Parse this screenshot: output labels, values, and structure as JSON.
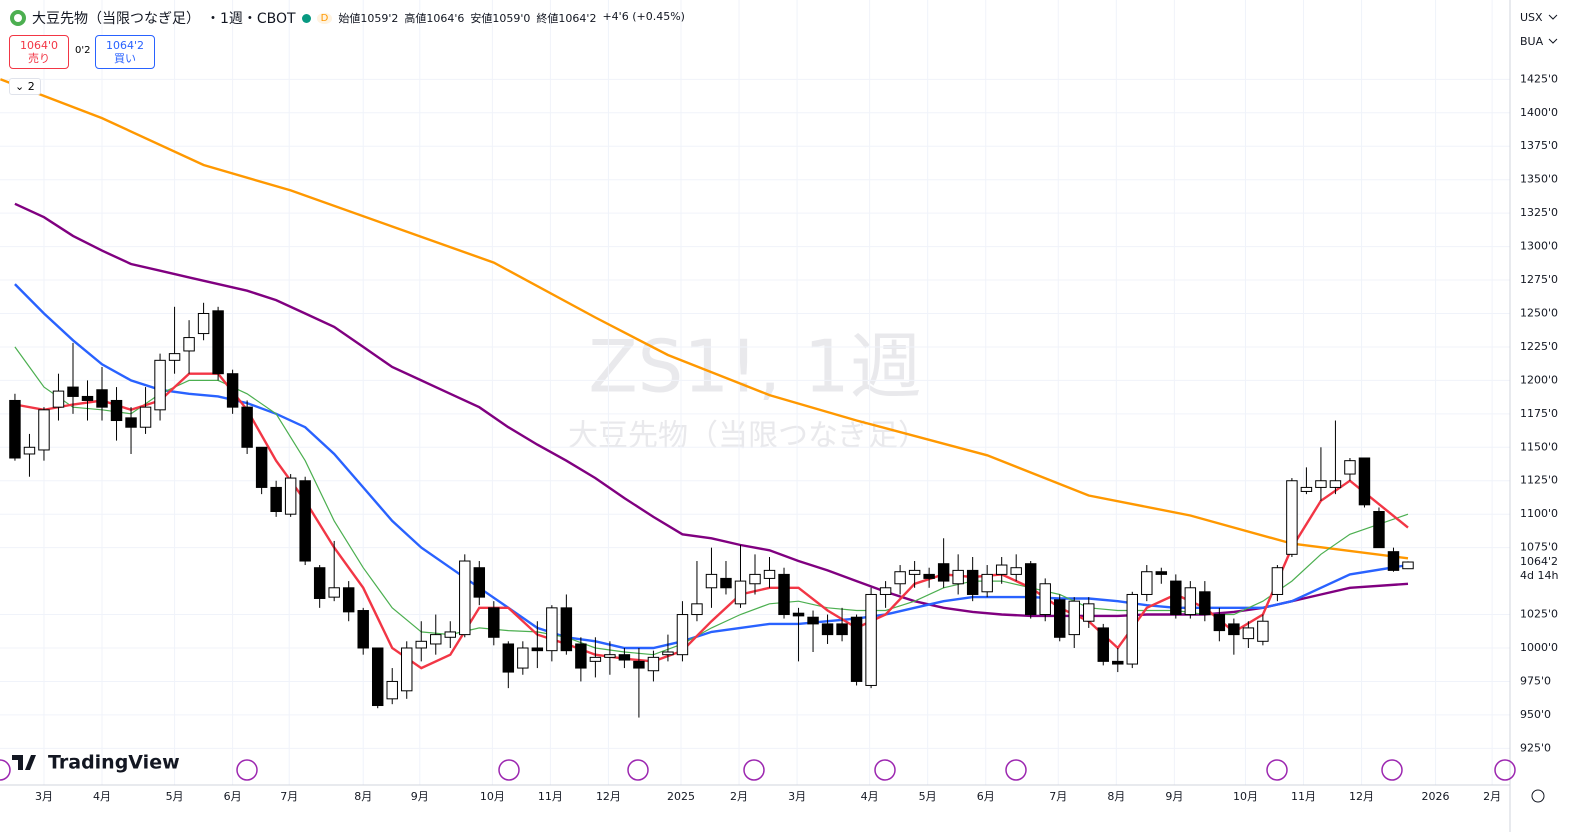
{
  "header": {
    "title": "大豆先物（当限つなぎ足）",
    "subtitle": "・1週・CBOT",
    "flag": "D",
    "open": "始値1059'2",
    "high": "高値1064'6",
    "low": "安値1059'0",
    "close": "終値1064'2",
    "change": "+4'6 (+0.45%)"
  },
  "trade": {
    "sell_price": "1064'0",
    "sell": "売り",
    "spread": "0'2",
    "buy_price": "1064'2",
    "buy": "買い"
  },
  "indicators": "2",
  "watermark": {
    "symbol": "ZS1!, 1週",
    "name": "大豆先物（当限つなぎ足）"
  },
  "right_panel": {
    "currency": "USX",
    "unit": "BUA"
  },
  "logo": "TradingView",
  "chart_data": {
    "type": "candlestick",
    "up_color": "#ffffff",
    "down_color": "#000000",
    "grid": true,
    "open": [
      1185,
      1145,
      1148,
      1180,
      1195,
      1188,
      1193,
      1185,
      1172,
      1165,
      1178,
      1215,
      1222,
      1235,
      1252,
      1205,
      1180,
      1150,
      1120,
      1100,
      1125,
      1060,
      1038,
      1045,
      1028,
      1000,
      962,
      968,
      1000,
      1003,
      1008,
      1010,
      1060,
      1030,
      1003,
      985,
      1000,
      998,
      1030,
      1003,
      990,
      993,
      995,
      990,
      983,
      995,
      995,
      1025,
      1045,
      1052,
      1033,
      1048,
      1052,
      1055,
      1026,
      1023,
      1018,
      1018,
      1023,
      972,
      1040,
      1048,
      1055,
      1055,
      1063,
      1048,
      1058,
      1042,
      1055,
      1055,
      1063,
      1025,
      1036,
      1010,
      1020,
      1015,
      990,
      988,
      1040,
      1057,
      1050,
      1025,
      1042,
      1025,
      1018,
      1007,
      1005,
      1040,
      1070,
      1117,
      1120,
      1120,
      1130,
      1142,
      1102,
      1072,
      1059.25
    ],
    "high": [
      1190,
      1160,
      1180,
      1205,
      1228,
      1200,
      1210,
      1195,
      1180,
      1195,
      1220,
      1255,
      1245,
      1258,
      1255,
      1208,
      1185,
      1150,
      1125,
      1130,
      1128,
      1062,
      1080,
      1050,
      1030,
      1000,
      985,
      1005,
      1020,
      1025,
      1020,
      1070,
      1065,
      1035,
      1005,
      1005,
      1020,
      1032,
      1040,
      1008,
      1008,
      1005,
      1000,
      1000,
      998,
      1010,
      1035,
      1065,
      1075,
      1065,
      1077,
      1070,
      1068,
      1060,
      1030,
      1028,
      1025,
      1030,
      1025,
      1045,
      1050,
      1062,
      1065,
      1060,
      1082,
      1070,
      1068,
      1062,
      1068,
      1070,
      1065,
      1052,
      1040,
      1038,
      1038,
      1018,
      1000,
      1042,
      1062,
      1060,
      1055,
      1050,
      1050,
      1030,
      1022,
      1020,
      1025,
      1062,
      1127,
      1135,
      1150,
      1170,
      1142,
      1142,
      1105,
      1075,
      1064.75
    ],
    "low": [
      1140,
      1128,
      1140,
      1170,
      1175,
      1170,
      1170,
      1155,
      1145,
      1160,
      1170,
      1205,
      1205,
      1230,
      1200,
      1175,
      1145,
      1115,
      1098,
      1098,
      1062,
      1030,
      1035,
      1020,
      995,
      955,
      958,
      962,
      990,
      995,
      1000,
      1008,
      1032,
      1002,
      970,
      980,
      985,
      990,
      995,
      975,
      978,
      980,
      985,
      948,
      975,
      990,
      990,
      1020,
      1030,
      1040,
      1030,
      1040,
      1045,
      1022,
      990,
      997,
      1003,
      1005,
      972,
      970,
      1030,
      1040,
      1045,
      1045,
      1045,
      1040,
      1035,
      1038,
      1048,
      1050,
      1022,
      1020,
      1005,
      1000,
      1015,
      987,
      982,
      985,
      1035,
      1048,
      1022,
      1022,
      1020,
      1005,
      995,
      1000,
      1002,
      1035,
      1068,
      1115,
      1110,
      1115,
      1125,
      1105,
      1075,
      1057,
      1059
    ],
    "close": [
      1142,
      1150,
      1178,
      1192,
      1188,
      1185,
      1180,
      1170,
      1165,
      1180,
      1215,
      1220,
      1232,
      1250,
      1205,
      1180,
      1150,
      1120,
      1102,
      1127,
      1065,
      1037,
      1045,
      1027,
      1000,
      957,
      975,
      1000,
      1005,
      1010,
      1012,
      1065,
      1038,
      1008,
      982,
      1000,
      998,
      1030,
      998,
      985,
      993,
      995,
      991,
      985,
      993,
      997,
      1025,
      1033,
      1055,
      1045,
      1050,
      1055,
      1058,
      1025,
      1024,
      1018,
      1010,
      1010,
      975,
      1040,
      1045,
      1057,
      1058,
      1052,
      1050,
      1058,
      1040,
      1055,
      1062,
      1060,
      1025,
      1048,
      1008,
      1035,
      1033,
      990,
      988,
      1040,
      1057,
      1055,
      1025,
      1045,
      1025,
      1013,
      1010,
      1015,
      1020,
      1060,
      1125,
      1120,
      1125,
      1125,
      1140,
      1107,
      1075,
      1058,
      1064.25
    ],
    "lines": [
      {
        "color": "#ff9800",
        "x": [
          -1,
          6,
          13,
          19,
          26,
          33,
          40,
          45,
          52,
          58,
          67,
          74,
          81,
          88,
          96
        ],
        "values": [
          1425,
          1396,
          1361,
          1342,
          1315,
          1288,
          1247,
          1219,
          1189,
          1170,
          1144,
          1114,
          1099,
          1078,
          1067
        ]
      },
      {
        "color": "#800080",
        "x": [
          0,
          2,
          4,
          6,
          8,
          10,
          12,
          14,
          16,
          18,
          20,
          22,
          24,
          26,
          28,
          30,
          32,
          34,
          36,
          38,
          40,
          42,
          44,
          46,
          48,
          50,
          52,
          54,
          56,
          58,
          60,
          62,
          64,
          66,
          68,
          70,
          72,
          74,
          76,
          78,
          80,
          82,
          84,
          86,
          88,
          90,
          92,
          96
        ],
        "values": [
          1332,
          1322,
          1308,
          1297,
          1287,
          1282,
          1277,
          1272,
          1267,
          1260,
          1250,
          1240,
          1225,
          1210,
          1200,
          1190,
          1180,
          1165,
          1152,
          1140,
          1127,
          1112,
          1098,
          1085,
          1082,
          1077,
          1073,
          1065,
          1058,
          1050,
          1042,
          1035,
          1030,
          1027,
          1025,
          1024,
          1024,
          1024,
          1024,
          1025,
          1025,
          1025,
          1027,
          1030,
          1035,
          1040,
          1045,
          1048
        ]
      },
      {
        "color": "#2962ff",
        "x": [
          0,
          2,
          4,
          6,
          8,
          10,
          12,
          14,
          16,
          18,
          20,
          22,
          24,
          26,
          28,
          30,
          32,
          34,
          36,
          38,
          40,
          42,
          44,
          46,
          48,
          50,
          52,
          54,
          56,
          58,
          60,
          62,
          64,
          66,
          68,
          70,
          72,
          74,
          76,
          78,
          80,
          82,
          84,
          86,
          88,
          90,
          92,
          96
        ],
        "values": [
          1272,
          1250,
          1230,
          1212,
          1200,
          1193,
          1190,
          1188,
          1183,
          1175,
          1165,
          1145,
          1120,
          1095,
          1075,
          1060,
          1045,
          1030,
          1015,
          1008,
          1005,
          1000,
          1000,
          1005,
          1012,
          1015,
          1018,
          1018,
          1020,
          1022,
          1025,
          1030,
          1035,
          1038,
          1038,
          1038,
          1037,
          1037,
          1035,
          1032,
          1030,
          1030,
          1030,
          1030,
          1035,
          1045,
          1055,
          1062
        ]
      },
      {
        "color": "#4caf50",
        "x": [
          0,
          2,
          4,
          6,
          8,
          10,
          12,
          14,
          16,
          18,
          20,
          22,
          24,
          26,
          28,
          30,
          32,
          34,
          36,
          38,
          40,
          42,
          44,
          46,
          48,
          50,
          52,
          54,
          56,
          58,
          60,
          62,
          64,
          66,
          68,
          70,
          72,
          74,
          76,
          78,
          80,
          82,
          84,
          86,
          88,
          90,
          92,
          96
        ],
        "values": [
          1225,
          1195,
          1180,
          1178,
          1175,
          1190,
          1200,
          1200,
          1190,
          1175,
          1140,
          1095,
          1060,
          1030,
          1012,
          1010,
          1015,
          1013,
          1012,
          1008,
          1000,
          997,
          995,
          1003,
          1015,
          1025,
          1033,
          1035,
          1030,
          1028,
          1028,
          1035,
          1045,
          1050,
          1050,
          1045,
          1040,
          1030,
          1028,
          1028,
          1028,
          1025,
          1025,
          1035,
          1050,
          1070,
          1085,
          1100
        ]
      },
      {
        "color": "#f23645",
        "x": [
          0,
          2,
          4,
          6,
          8,
          10,
          12,
          14,
          16,
          18,
          20,
          22,
          24,
          26,
          28,
          30,
          32,
          34,
          36,
          38,
          40,
          42,
          44,
          46,
          48,
          50,
          52,
          54,
          56,
          58,
          60,
          62,
          64,
          66,
          68,
          70,
          72,
          74,
          76,
          78,
          80,
          82,
          84,
          86,
          88,
          90,
          92,
          96
        ],
        "values": [
          1182,
          1178,
          1182,
          1185,
          1178,
          1185,
          1205,
          1205,
          1178,
          1140,
          1110,
          1075,
          1045,
          1000,
          985,
          995,
          1030,
          1030,
          1010,
          1003,
          995,
          992,
          990,
          998,
          1020,
          1040,
          1045,
          1045,
          1028,
          1015,
          1025,
          1048,
          1055,
          1053,
          1055,
          1045,
          1030,
          1020,
          1000,
          1030,
          1040,
          1030,
          1012,
          1025,
          1075,
          1110,
          1125,
          1090
        ]
      }
    ],
    "xlim": [
      -1.03,
      103.03
    ],
    "xticks": [
      {
        "value": 2,
        "label": "3月"
      },
      {
        "value": 6,
        "label": "4月"
      },
      {
        "value": 11,
        "label": "5月"
      },
      {
        "value": 15,
        "label": "6月"
      },
      {
        "value": 18.9,
        "label": "7月"
      },
      {
        "value": 24,
        "label": "8月"
      },
      {
        "value": 27.9,
        "label": "9月"
      },
      {
        "value": 32.9,
        "label": "10月"
      },
      {
        "value": 36.9,
        "label": "11月"
      },
      {
        "value": 40.9,
        "label": "12月"
      },
      {
        "value": 45.9,
        "label": "2025"
      },
      {
        "value": 49.9,
        "label": "2月"
      },
      {
        "value": 53.9,
        "label": "3月"
      },
      {
        "value": 58.9,
        "label": "4月"
      },
      {
        "value": 62.9,
        "label": "5月"
      },
      {
        "value": 66.9,
        "label": "6月"
      },
      {
        "value": 71.9,
        "label": "7月"
      },
      {
        "value": 75.9,
        "label": "8月"
      },
      {
        "value": 79.9,
        "label": "9月"
      },
      {
        "value": 84.8,
        "label": "10月"
      },
      {
        "value": 88.8,
        "label": "11月"
      },
      {
        "value": 92.8,
        "label": "12月"
      },
      {
        "value": 97.9,
        "label": "2026"
      },
      {
        "value": 101.8,
        "label": "2月"
      }
    ],
    "ylim": [
      897.6,
      1484.3
    ],
    "yticks": [
      {
        "value": 925,
        "label": "925'0"
      },
      {
        "value": 950,
        "label": "950'0"
      },
      {
        "value": 975,
        "label": "975'0"
      },
      {
        "value": 1000,
        "label": "1000'0"
      },
      {
        "value": 1025,
        "label": "1025'0"
      },
      {
        "value": 1075,
        "label": "1075'0"
      },
      {
        "value": 1100,
        "label": "1100'0"
      },
      {
        "value": 1125,
        "label": "1125'0"
      },
      {
        "value": 1150,
        "label": "1150'0"
      },
      {
        "value": 1175,
        "label": "1175'0"
      },
      {
        "value": 1200,
        "label": "1200'0"
      },
      {
        "value": 1225,
        "label": "1225'0"
      },
      {
        "value": 1250,
        "label": "1250'0"
      },
      {
        "value": 1275,
        "label": "1275'0"
      },
      {
        "value": 1300,
        "label": "1300'0"
      },
      {
        "value": 1325,
        "label": "1325'0"
      },
      {
        "value": 1350,
        "label": "1350'0"
      },
      {
        "value": 1375,
        "label": "1375'0"
      },
      {
        "value": 1400,
        "label": "1400'0"
      },
      {
        "value": 1425,
        "label": "1425'0"
      }
    ],
    "last": {
      "value": 1064.25,
      "label": "1064'2",
      "countdown": "4d 14h"
    }
  }
}
